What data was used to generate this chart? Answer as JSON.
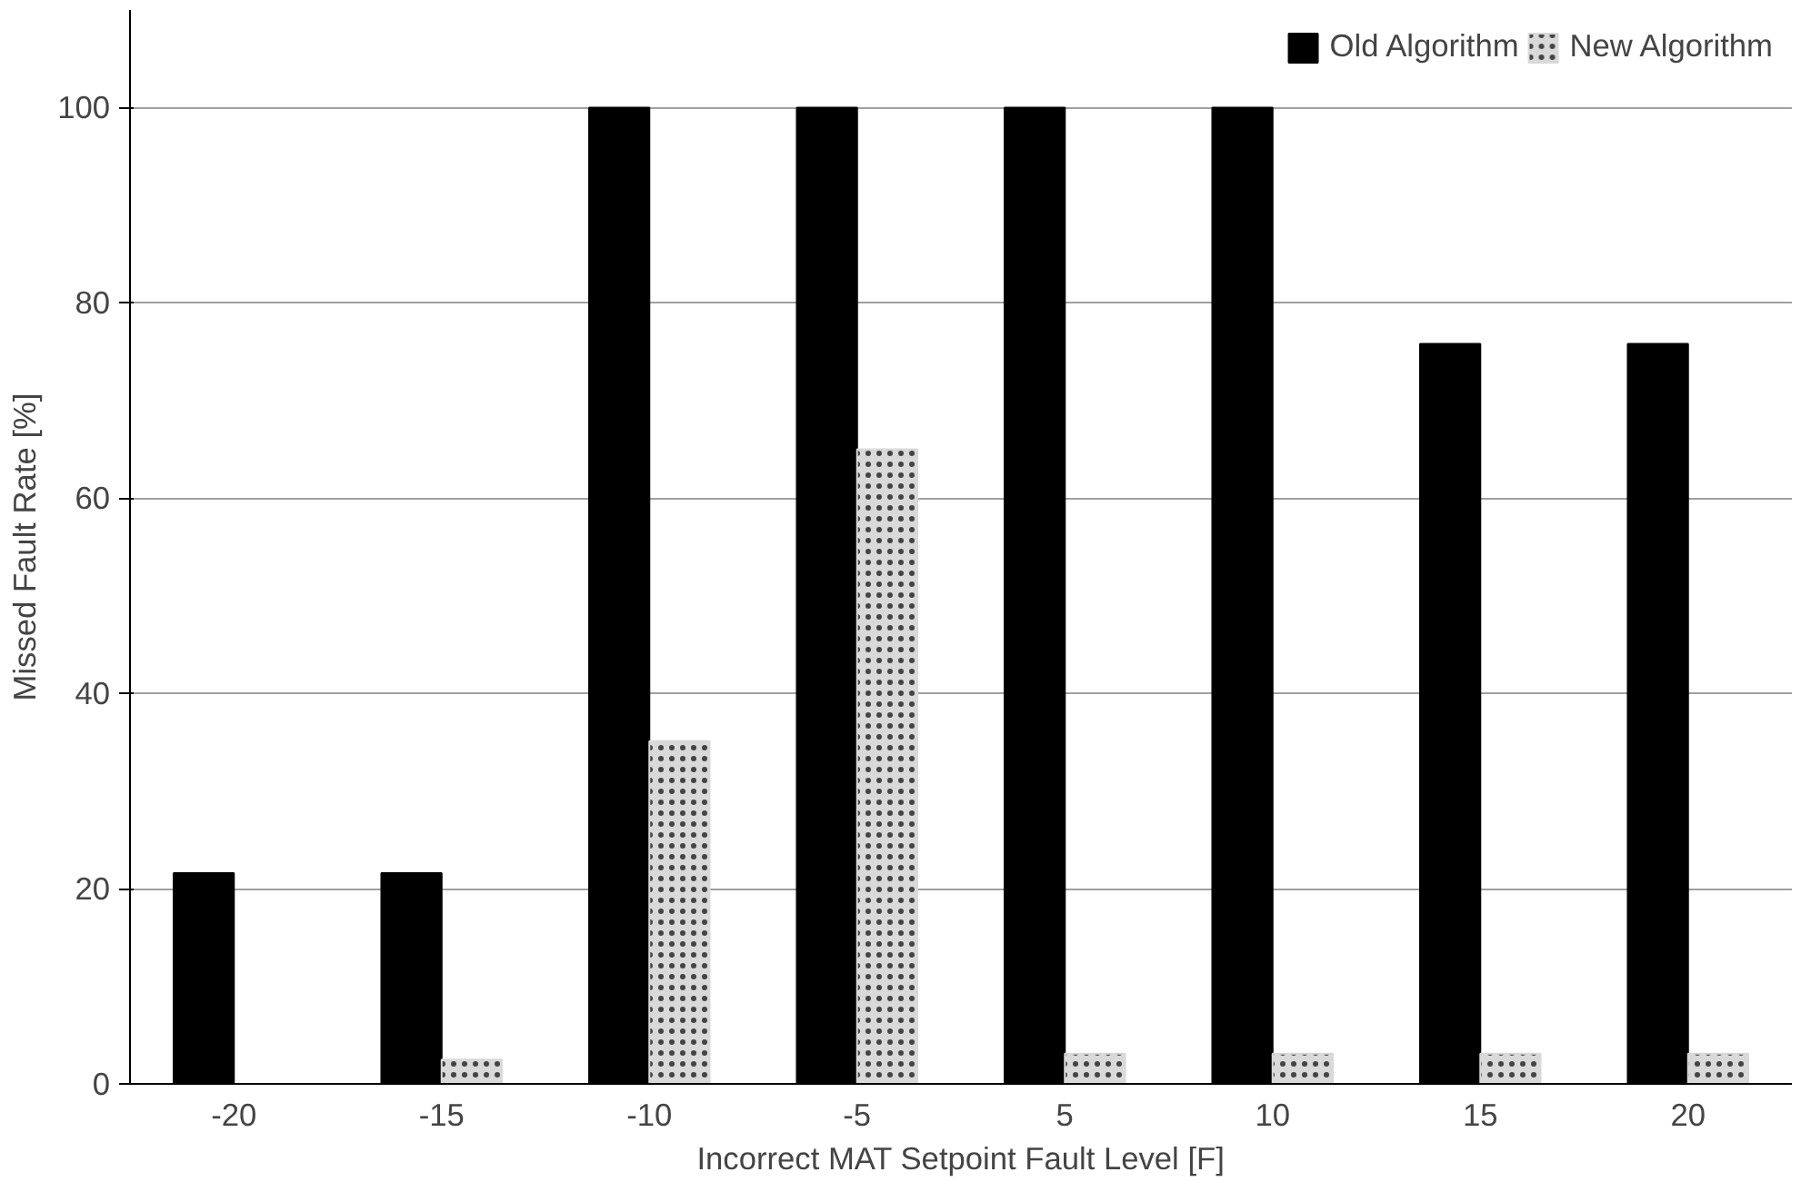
{
  "chart_data": {
    "type": "bar",
    "xlabel": "Incorrect MAT Setpoint Fault Level [F]",
    "ylabel": "Missed Fault Rate [%]",
    "categories": [
      "-20",
      "-15",
      "-10",
      "-5",
      "5",
      "10",
      "15",
      "20"
    ],
    "series": [
      {
        "name": "Old Algorithm",
        "color": "#000000",
        "values": [
          21.6,
          21.6,
          100,
          100,
          100,
          100,
          75.8,
          75.8
        ]
      },
      {
        "name": "New Algorithm",
        "color": "#d9d9d9",
        "values": [
          null,
          2.5,
          35.1,
          65,
          3.1,
          3.1,
          3.1,
          3.1
        ]
      }
    ],
    "ylim": [
      0,
      110
    ],
    "yticks": [
      0,
      20,
      40,
      60,
      80,
      100
    ],
    "grid": "y",
    "legend": "top right"
  }
}
